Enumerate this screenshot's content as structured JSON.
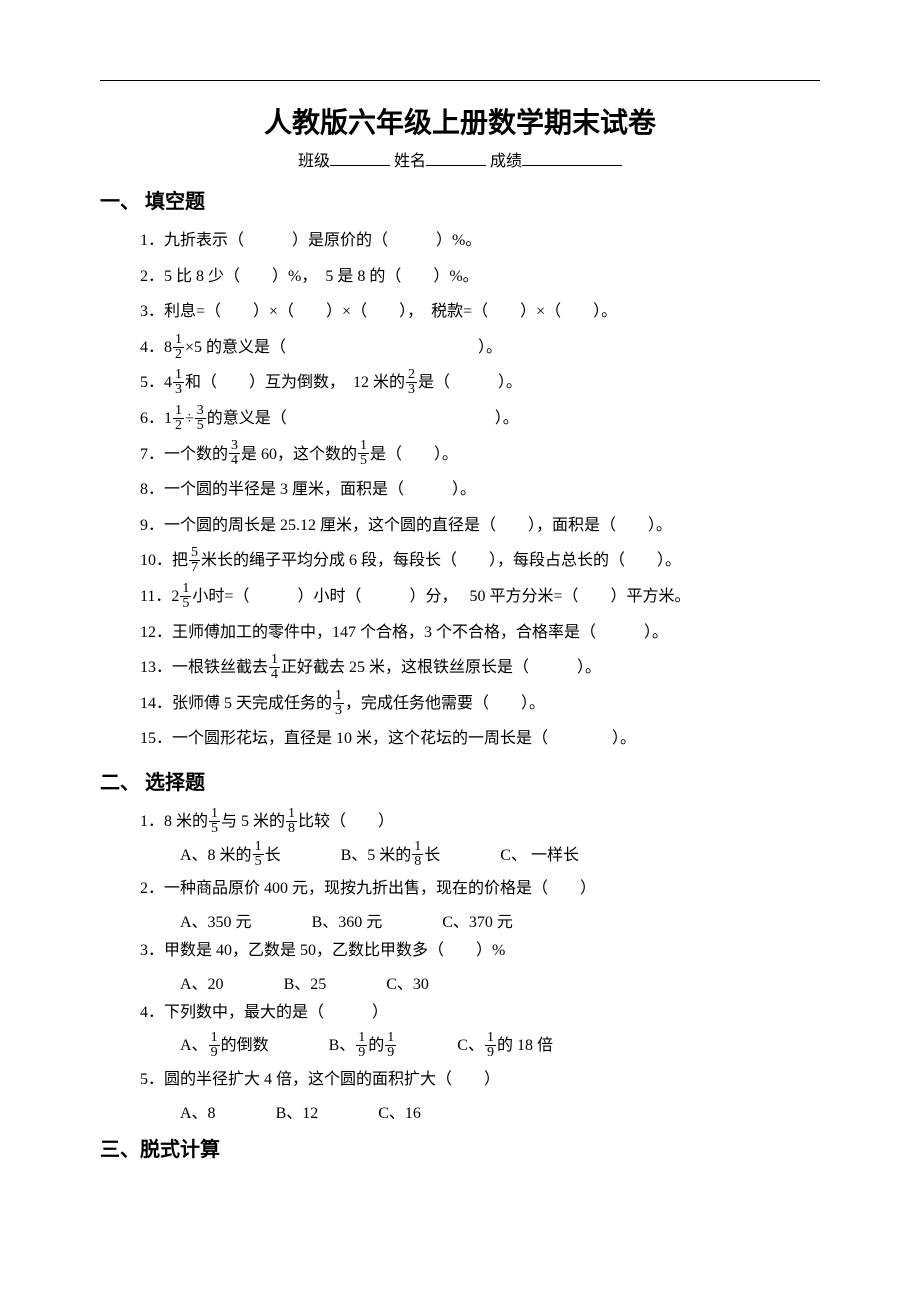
{
  "title": "人教版六年级上册数学期末试卷",
  "meta": {
    "class_label": "班级",
    "name_label": "姓名",
    "score_label": "成绩"
  },
  "sections": {
    "s1": "一、 填空题",
    "s2": "二、 选择题",
    "s3": "三、脱式计算"
  },
  "fill": {
    "q1": "1．九折表示（　　　）是原价的（　　　）%。",
    "q2": "2．5 比 8 少（　　）%，　5 是 8 的（　　）%。",
    "q3": "3．利息=（　　）×（　　）×（　　），　税款=（　　）×（　　）。",
    "q4_pre": "4．8",
    "q4_frac_n": "1",
    "q4_frac_d": "2",
    "q4_post": "×5 的意义是（　　　　　　　　　　　　）。",
    "q5_pre": "5．4",
    "q5_f1n": "1",
    "q5_f1d": "3",
    "q5_mid": "和（　　）互为倒数，　12 米的",
    "q5_f2n": "2",
    "q5_f2d": "3",
    "q5_post": "是（　　　）。",
    "q6_pre": "6．1",
    "q6_f1n": "1",
    "q6_f1d": "2",
    "q6_div": "÷",
    "q6_f2n": "3",
    "q6_f2d": "5",
    "q6_post": "的意义是（　　　　　　　　　　　　　）。",
    "q7_pre": "7．一个数的",
    "q7_f1n": "3",
    "q7_f1d": "4",
    "q7_mid": "是 60，这个数的",
    "q7_f2n": "1",
    "q7_f2d": "5",
    "q7_post": "是（　　）。",
    "q8": "8．一个圆的半径是 3 厘米，面积是（　　　）。",
    "q9": "9．一个圆的周长是 25.12 厘米，这个圆的直径是（　　），面积是（　　）。",
    "q10_pre": "10．把",
    "q10_fn": "5",
    "q10_fd": "7",
    "q10_post": "米长的绳子平均分成 6 段，每段长（　　），每段占总长的（　　）。",
    "q11_pre": "11．2",
    "q11_fn": "1",
    "q11_fd": "5",
    "q11_post": "小时=（　　　）小时（　　　）分，　 50 平方分米=（　　）平方米。",
    "q12": "12．王师傅加工的零件中，147 个合格，3 个不合格，合格率是（　　　）。",
    "q13_pre": "13．一根铁丝截去",
    "q13_fn": "1",
    "q13_fd": "4",
    "q13_post": "正好截去 25 米，这根铁丝原长是（　　　）。",
    "q14_pre": "14．张师傅 5 天完成任务的",
    "q14_fn": "1",
    "q14_fd": "3",
    "q14_post": "，完成任务他需要（　　）。",
    "q15": "15．一个圆形花坛，直径是 10 米，这个花坛的一周长是（　　　　）。"
  },
  "choice": {
    "q1_pre": "1．8 米的",
    "q1_f1n": "1",
    "q1_f1d": "5",
    "q1_mid": "与 5 米的",
    "q1_f2n": "1",
    "q1_f2d": "8",
    "q1_post": "比较（　　）",
    "q1a_pre": "A、8 米的",
    "q1a_fn": "1",
    "q1a_fd": "5",
    "q1a_post": "长",
    "q1b_pre": "B、5 米的",
    "q1b_fn": "1",
    "q1b_fd": "8",
    "q1b_post": "长",
    "q1c": "C、 一样长",
    "q2": "2．一种商品原价 400 元，现按九折出售，现在的价格是（　　）",
    "q2a": "A、350 元",
    "q2b": "B、360 元",
    "q2c": "C、370 元",
    "q3": "3．甲数是 40，乙数是 50，乙数比甲数多（　　）%",
    "q3a": "A、20",
    "q3b": "B、25",
    "q3c": "C、30",
    "q4": "4．下列数中，最大的是（　　　）",
    "q4a_pre": "A、",
    "q4a_fn": "1",
    "q4a_fd": "9",
    "q4a_post": "的倒数",
    "q4b_pre": "B、",
    "q4b_f1n": "1",
    "q4b_f1d": "9",
    "q4b_mid": "的",
    "q4b_f2n": "1",
    "q4b_f2d": "9",
    "q4c_pre": "C、",
    "q4c_fn": "1",
    "q4c_fd": "9",
    "q4c_post": "的 18 倍",
    "q5": "5．圆的半径扩大 4 倍，这个圆的面积扩大（　　）",
    "q5a": "A、8",
    "q5b": "B、12",
    "q5c": "C、16"
  }
}
